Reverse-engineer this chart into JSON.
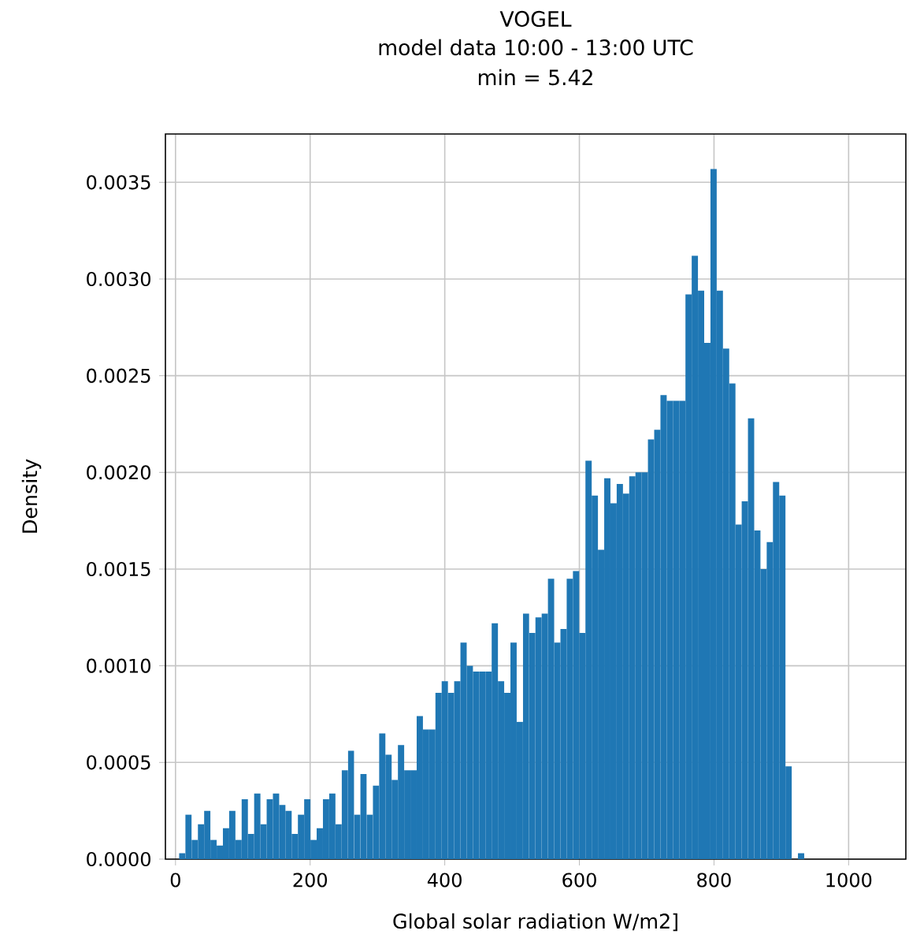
{
  "chart_data": {
    "type": "histogram",
    "title": "VOGEL",
    "subtitle": "model data 10:00 - 13:00 UTC",
    "annotations": [
      "min = 5.42"
    ],
    "xlabel": "Global solar radiation W/m2]",
    "ylabel": "Density",
    "bins": [
      5.42,
      14.71,
      23.99,
      33.28,
      42.56,
      51.85,
      61.14,
      70.42,
      79.71,
      88.99,
      98.28,
      107.57,
      116.85,
      126.14,
      135.42,
      144.71,
      154.0,
      163.28,
      172.57,
      181.85,
      191.14,
      200.43,
      209.71,
      219.0,
      228.28,
      237.57,
      246.86,
      256.14,
      265.43,
      274.71,
      284.0,
      293.29,
      302.57,
      311.86,
      321.14,
      330.43,
      339.72,
      349.0,
      358.29,
      367.57,
      376.86,
      386.15,
      395.43,
      404.72,
      414.0,
      423.29,
      432.58,
      441.86,
      451.15,
      460.43,
      469.72,
      479.01,
      488.29,
      497.58,
      506.86,
      516.15,
      525.44,
      534.72,
      544.01,
      553.29,
      562.58,
      571.87,
      581.15,
      590.44,
      599.72,
      609.01,
      618.3,
      627.58,
      636.87,
      646.15,
      655.44,
      664.73,
      674.01,
      683.3,
      692.58,
      701.87,
      711.16,
      720.44,
      729.73,
      739.01,
      748.3,
      757.59,
      766.87,
      776.16,
      785.44,
      794.73,
      804.02,
      813.3,
      822.59,
      831.87,
      841.16,
      850.45,
      859.73,
      869.02,
      878.3,
      887.59,
      896.88,
      906.16,
      915.45,
      924.73,
      934.02
    ],
    "values": [
      3e-05,
      0.00023,
      0.0001,
      0.00018,
      0.00025,
      0.0001,
      7e-05,
      0.00016,
      0.00025,
      0.0001,
      0.00031,
      0.00013,
      0.00034,
      0.00018,
      0.00031,
      0.00034,
      0.00028,
      0.00025,
      0.00013,
      0.00023,
      0.00031,
      0.0001,
      0.00016,
      0.00031,
      0.00034,
      0.00018,
      0.00046,
      0.00056,
      0.00023,
      0.00044,
      0.00023,
      0.00038,
      0.00065,
      0.00054,
      0.00041,
      0.00059,
      0.00046,
      0.00046,
      0.00074,
      0.00067,
      0.00067,
      0.00086,
      0.00092,
      0.00086,
      0.00092,
      0.00112,
      0.001,
      0.00097,
      0.00097,
      0.00097,
      0.00122,
      0.00092,
      0.00086,
      0.00112,
      0.00071,
      0.00127,
      0.00117,
      0.00125,
      0.00127,
      0.00145,
      0.00112,
      0.00119,
      0.00145,
      0.00149,
      0.00117,
      0.00206,
      0.00188,
      0.0016,
      0.00197,
      0.00184,
      0.00194,
      0.00189,
      0.00198,
      0.002,
      0.002,
      0.00217,
      0.00222,
      0.0024,
      0.00237,
      0.00237,
      0.00237,
      0.00292,
      0.00312,
      0.00294,
      0.00267,
      0.00357,
      0.00294,
      0.00264,
      0.00246,
      0.00173,
      0.00185,
      0.00228,
      0.0017,
      0.0015,
      0.00164,
      0.00195,
      0.00188,
      0.00048,
      0,
      3e-05
    ],
    "color": "#1f77b4",
    "xlim": [
      -15,
      1085
    ],
    "ylim": [
      0,
      0.00375
    ],
    "xticks": [
      0,
      200,
      400,
      600,
      800,
      1000
    ],
    "yticks": [
      {
        "value": 0,
        "label": "0.0000"
      },
      {
        "value": 0.0005,
        "label": "0.0005"
      },
      {
        "value": 0.001,
        "label": "0.0010"
      },
      {
        "value": 0.0015,
        "label": "0.0015"
      },
      {
        "value": 0.002,
        "label": "0.0020"
      },
      {
        "value": 0.0025,
        "label": "0.0025"
      },
      {
        "value": 0.003,
        "label": "0.0030"
      },
      {
        "value": 0.0035,
        "label": "0.0035"
      }
    ],
    "grid": true
  }
}
